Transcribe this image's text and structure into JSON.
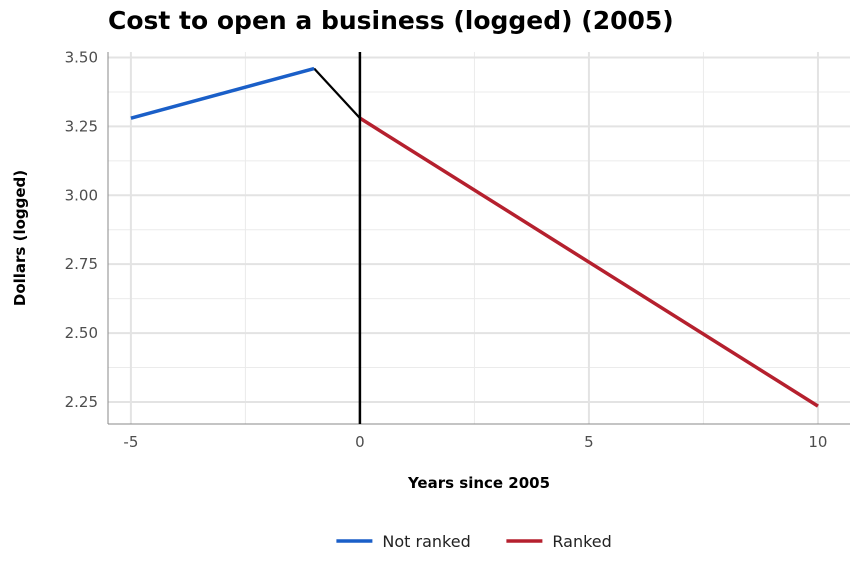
{
  "chart_data": {
    "type": "line",
    "title": "Cost to open a business (logged) (2005)",
    "xlabel": "Years since 2005",
    "ylabel": "Dollars (logged)",
    "xlim": [
      -5.5,
      10.7
    ],
    "ylim": [
      2.17,
      3.52
    ],
    "x_ticks": [
      -5,
      0,
      5,
      10
    ],
    "x_tick_labels": [
      "-5",
      "0",
      "5",
      "10"
    ],
    "y_ticks": [
      2.25,
      2.5,
      2.75,
      3.0,
      3.25,
      3.5
    ],
    "y_tick_labels": [
      "2.25",
      "2.50",
      "2.75",
      "3.00",
      "3.25",
      "3.50"
    ],
    "grid": true,
    "legend_position": "bottom",
    "reference_line": {
      "x": 0,
      "color": "#000000"
    },
    "connector": {
      "x": [
        -1,
        0
      ],
      "y": [
        3.46,
        3.28
      ],
      "color": "#000000"
    },
    "series": [
      {
        "name": "Not ranked",
        "color": "#1a5fc8",
        "x": [
          -5,
          -1
        ],
        "y": [
          3.28,
          3.46
        ]
      },
      {
        "name": "Ranked",
        "color": "#b5202e",
        "x": [
          0,
          10
        ],
        "y": [
          3.28,
          2.235
        ]
      }
    ]
  }
}
